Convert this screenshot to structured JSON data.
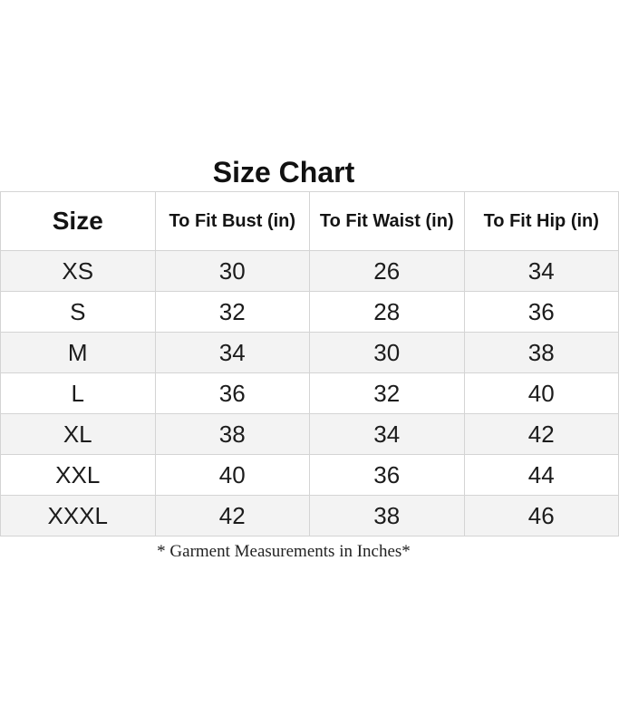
{
  "title": "Size Chart",
  "table": {
    "columns": [
      "Size",
      "To Fit Bust (in)",
      "To Fit Waist (in)",
      "To Fit Hip (in)"
    ],
    "rows": [
      [
        "XS",
        "30",
        "26",
        "34"
      ],
      [
        "S",
        "32",
        "28",
        "36"
      ],
      [
        "M",
        "34",
        "30",
        "38"
      ],
      [
        "L",
        "36",
        "32",
        "40"
      ],
      [
        "XL",
        "38",
        "34",
        "42"
      ],
      [
        "XXL",
        "40",
        "36",
        "44"
      ],
      [
        "XXXL",
        "42",
        "38",
        "46"
      ]
    ]
  },
  "footnote": "* Garment Measurements in Inches*",
  "colors": {
    "background": "#ffffff",
    "row_shaded": "#f3f3f3",
    "border": "#d4d4d4",
    "text": "#1c1c1c"
  },
  "chart_data": {
    "type": "table",
    "title": "Size Chart",
    "columns": [
      "Size",
      "To Fit Bust (in)",
      "To Fit Waist (in)",
      "To Fit Hip (in)"
    ],
    "categories": [
      "XS",
      "S",
      "M",
      "L",
      "XL",
      "XXL",
      "XXXL"
    ],
    "series": [
      {
        "name": "To Fit Bust (in)",
        "values": [
          30,
          32,
          34,
          36,
          38,
          40,
          42
        ]
      },
      {
        "name": "To Fit Waist (in)",
        "values": [
          26,
          28,
          30,
          32,
          34,
          36,
          38
        ]
      },
      {
        "name": "To Fit Hip (in)",
        "values": [
          34,
          36,
          38,
          40,
          42,
          44,
          46
        ]
      }
    ],
    "footnote": "* Garment Measurements in Inches*"
  }
}
